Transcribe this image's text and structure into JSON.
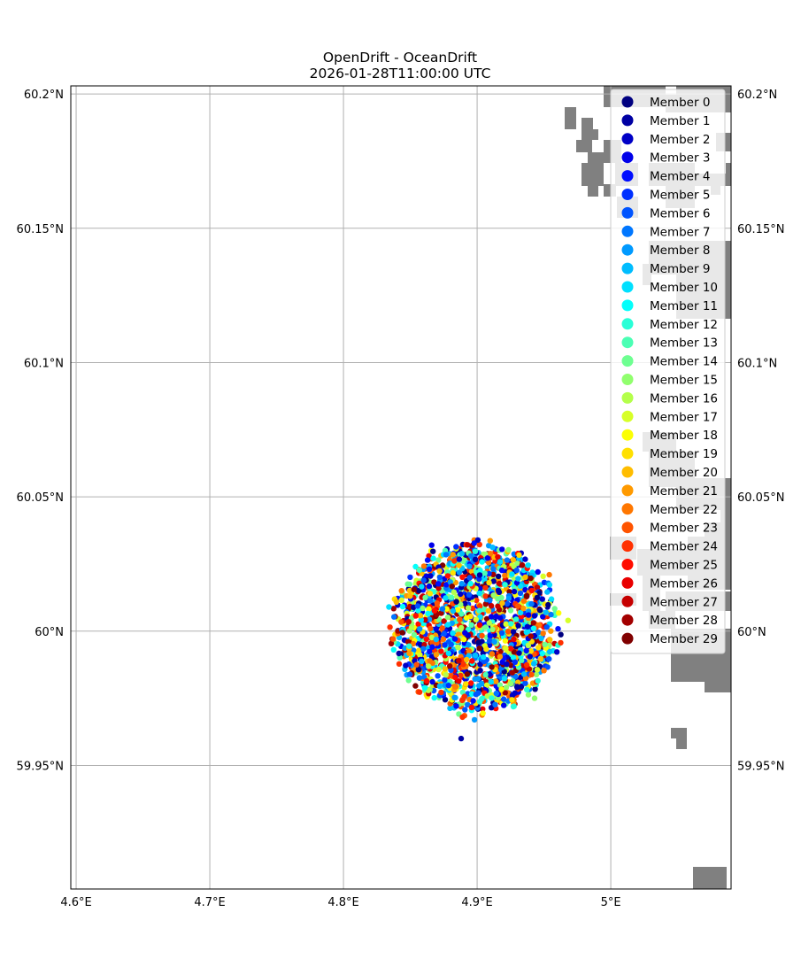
{
  "chart_data": {
    "type": "scatter",
    "title": "OpenDrift - OceanDrift",
    "subtitle": "2026-01-28T11:00:00 UTC",
    "xlim": [
      4.596,
      5.09
    ],
    "ylim": [
      59.904,
      60.203
    ],
    "x_ticks": [
      4.6,
      4.7,
      4.8,
      4.9,
      5.0
    ],
    "x_tick_labels": [
      "4.6°E",
      "4.7°E",
      "4.8°E",
      "4.9°E",
      "5°E"
    ],
    "y_ticks": [
      59.95,
      60.0,
      60.05,
      60.1,
      60.15,
      60.2
    ],
    "y_tick_labels": [
      "59.95°N",
      "60°N",
      "60.05°N",
      "60.1°N",
      "60.15°N",
      "60.2°N"
    ],
    "grid": true,
    "legend_position": "top-right",
    "colormap": "jet",
    "land_color": "#808080",
    "cloud": {
      "center_lon": 4.899,
      "center_lat": 60.001,
      "radius_lon": 0.062,
      "radius_lat": 0.032
    },
    "series": [
      {
        "name": "Member 0"
      },
      {
        "name": "Member 1"
      },
      {
        "name": "Member 2"
      },
      {
        "name": "Member 3"
      },
      {
        "name": "Member 4"
      },
      {
        "name": "Member 5"
      },
      {
        "name": "Member 6"
      },
      {
        "name": "Member 7"
      },
      {
        "name": "Member 8"
      },
      {
        "name": "Member 9"
      },
      {
        "name": "Member 10"
      },
      {
        "name": "Member 11"
      },
      {
        "name": "Member 12"
      },
      {
        "name": "Member 13"
      },
      {
        "name": "Member 14"
      },
      {
        "name": "Member 15"
      },
      {
        "name": "Member 16"
      },
      {
        "name": "Member 17"
      },
      {
        "name": "Member 18"
      },
      {
        "name": "Member 19"
      },
      {
        "name": "Member 20"
      },
      {
        "name": "Member 21"
      },
      {
        "name": "Member 22"
      },
      {
        "name": "Member 23"
      },
      {
        "name": "Member 24"
      },
      {
        "name": "Member 25"
      },
      {
        "name": "Member 26"
      },
      {
        "name": "Member 27"
      },
      {
        "name": "Member 28"
      },
      {
        "name": "Member 29"
      }
    ],
    "outliers": [
      {
        "lon": 4.866,
        "lat": 60.032
      },
      {
        "lon": 4.834,
        "lat": 60.009
      },
      {
        "lon": 4.968,
        "lat": 60.004
      },
      {
        "lon": 4.889,
        "lat": 59.968
      },
      {
        "lon": 4.888,
        "lat": 59.96
      },
      {
        "lon": 4.898,
        "lat": 59.967
      },
      {
        "lon": 4.943,
        "lat": 59.975
      },
      {
        "lon": 4.954,
        "lat": 60.021
      }
    ]
  }
}
